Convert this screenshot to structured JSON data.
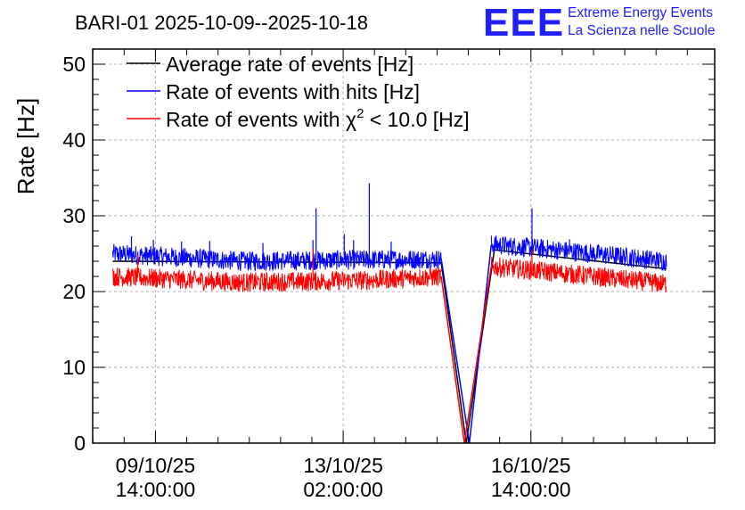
{
  "chart_data": {
    "type": "line",
    "title": "BARI-01 2025-10-09--2025-10-18",
    "ylabel": "Rate [Hz]",
    "xlabel": "",
    "ylim": [
      0,
      52
    ],
    "yticks": [
      0,
      10,
      20,
      30,
      40,
      50
    ],
    "x_unit": "days since 2025-10-09 00:00",
    "xlim": [
      -0.42,
      9.52
    ],
    "xticks": [
      {
        "pos": 0.583,
        "date": "09/10/25",
        "time": "14:00:00"
      },
      {
        "pos": 3.583,
        "date": "13/10/25",
        "time": "02:00:00"
      },
      {
        "pos": 6.583,
        "date": "16/10/25",
        "time": "14:00:00"
      }
    ],
    "grid": true,
    "legend_position": "top-left",
    "series": [
      {
        "name": "Average rate of events [Hz]",
        "color": "#000000",
        "points": [
          [
            -0.1,
            24.0
          ],
          [
            5.15,
            23.8
          ],
          [
            5.55,
            0.0
          ],
          [
            6.0,
            25.5
          ],
          [
            8.75,
            23.0
          ]
        ]
      },
      {
        "name": "Rate of events with hits [Hz]",
        "color": "#0000ff",
        "noise_band": [
          [
            -0.1,
            25.0
          ],
          [
            2.0,
            24.0
          ],
          [
            4.0,
            24.2
          ],
          [
            5.15,
            24.3
          ]
        ],
        "noise_band_after_gap": [
          [
            5.95,
            26.2
          ],
          [
            7.0,
            25.5
          ],
          [
            8.75,
            24.0
          ]
        ],
        "spikes": [
          [
            0.2,
            27.3
          ],
          [
            0.55,
            26.8
          ],
          [
            1.0,
            26.6
          ],
          [
            1.45,
            26.7
          ],
          [
            2.3,
            26.4
          ],
          [
            3.1,
            26.8
          ],
          [
            3.15,
            31.0
          ],
          [
            3.6,
            27.6
          ],
          [
            3.75,
            26.8
          ],
          [
            4.0,
            34.3
          ],
          [
            4.35,
            26.6
          ],
          [
            6.6,
            31.0
          ],
          [
            7.2,
            26.9
          ]
        ],
        "gap_points": [
          [
            5.15,
            24.3
          ],
          [
            5.6,
            0.0
          ],
          [
            5.95,
            26.2
          ]
        ]
      },
      {
        "name": "Rate of events with χ² < 10.0 [Hz]",
        "color": "#ff0000",
        "noise_band": [
          [
            -0.1,
            22.0
          ],
          [
            2.0,
            21.2
          ],
          [
            4.0,
            21.5
          ],
          [
            5.15,
            22.0
          ]
        ],
        "noise_band_after_gap": [
          [
            5.95,
            23.3
          ],
          [
            7.0,
            22.5
          ],
          [
            8.75,
            21.0
          ]
        ],
        "spikes": [
          [
            0.3,
            24.8
          ],
          [
            3.1,
            25.7
          ],
          [
            6.6,
            25.5
          ]
        ],
        "gap_points": [
          [
            5.15,
            22.0
          ],
          [
            5.52,
            0.0
          ],
          [
            5.95,
            23.3
          ]
        ]
      }
    ],
    "legend": {
      "avg": "Average rate of events [Hz]",
      "hits": "Rate of events with hits [Hz]",
      "chi_prefix": "Rate of events with χ",
      "chi_sup": "2",
      "chi_suffix": " < 10.0 [Hz]"
    },
    "logo": {
      "mark": "EEE",
      "line1": "Extreme Energy Events",
      "line2": "La Scienza nelle Scuole"
    }
  }
}
